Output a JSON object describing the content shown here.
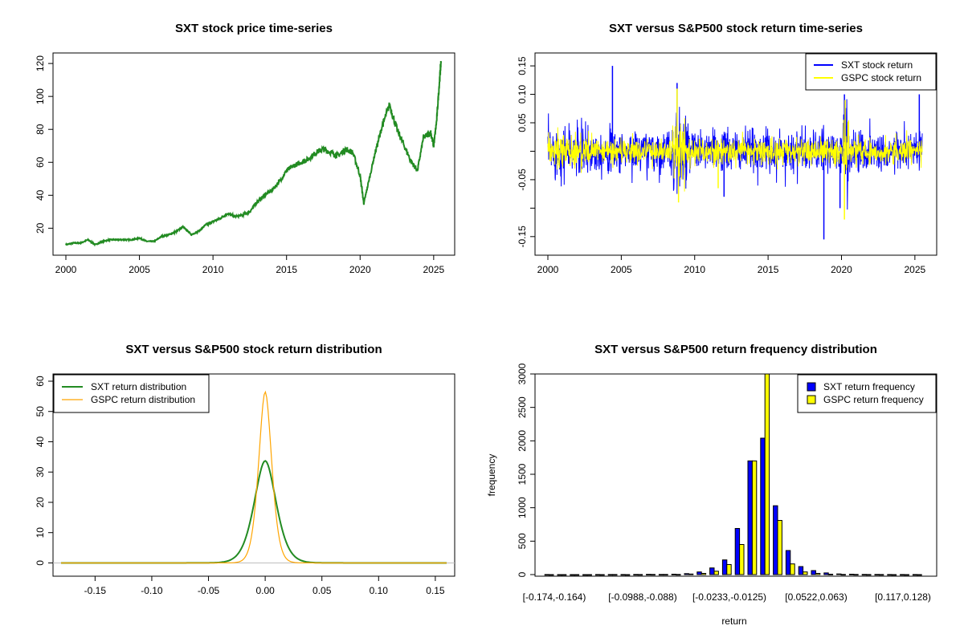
{
  "chart_data": [
    {
      "type": "line",
      "title": "SXT stock price time-series",
      "xlabel": "",
      "ylabel": "",
      "xlim": [
        2000,
        2025.5
      ],
      "ylim": [
        8,
        122
      ],
      "xticks": [
        2000,
        2005,
        2010,
        2015,
        2020,
        2025
      ],
      "yticks": [
        20,
        40,
        60,
        80,
        100,
        120
      ],
      "series": [
        {
          "color": "#228B22",
          "x": [
            2000.0,
            2000.5,
            2001.0,
            2001.5,
            2002.0,
            2002.5,
            2003.0,
            2003.5,
            2004.0,
            2004.5,
            2005.0,
            2005.5,
            2006.0,
            2006.5,
            2007.0,
            2007.5,
            2008.0,
            2008.5,
            2009.0,
            2009.5,
            2010.0,
            2010.5,
            2011.0,
            2011.5,
            2012.0,
            2012.5,
            2013.0,
            2013.5,
            2014.0,
            2014.5,
            2015.0,
            2015.5,
            2016.0,
            2016.5,
            2017.0,
            2017.5,
            2018.0,
            2018.5,
            2019.0,
            2019.5,
            2020.0,
            2020.25,
            2020.5,
            2021.0,
            2021.5,
            2022.0,
            2022.5,
            2023.0,
            2023.5,
            2023.9,
            2024.3,
            2024.8,
            2025.0,
            2025.2,
            2025.4,
            2025.5
          ],
          "y": [
            10,
            11,
            11,
            13,
            10,
            12,
            13,
            13,
            13,
            13,
            14,
            12,
            12,
            15,
            16,
            18,
            21,
            16,
            18,
            22,
            24,
            26,
            29,
            27,
            28,
            30,
            36,
            40,
            43,
            48,
            55,
            58,
            60,
            62,
            66,
            68,
            66,
            64,
            68,
            66,
            52,
            35,
            45,
            65,
            82,
            95,
            80,
            70,
            60,
            55,
            75,
            78,
            70,
            85,
            110,
            121
          ]
        }
      ]
    },
    {
      "type": "line",
      "title": "SXT versus S&P500 stock return time-series",
      "xlabel": "",
      "ylabel": "",
      "xlim": [
        2000,
        2025.5
      ],
      "ylim": [
        -0.17,
        0.16
      ],
      "xticks": [
        2000,
        2005,
        2010,
        2015,
        2020,
        2025
      ],
      "yticks": [
        -0.15,
        -0.1,
        -0.05,
        0.0,
        0.05,
        0.1,
        0.15
      ],
      "ytick_labels": [
        "-0.15",
        "",
        "-0.05",
        "",
        "0.05",
        "0.10",
        "0.15"
      ],
      "legend": {
        "position": "top-right",
        "entries": [
          "SXT stock return",
          "GSPC stock return"
        ]
      },
      "series": [
        {
          "name": "SXT stock return",
          "color": "#0000FF",
          "sd": 0.018,
          "spikes": [
            [
              2004.4,
              0.15
            ],
            [
              2008.8,
              0.12
            ],
            [
              2018.8,
              -0.155
            ],
            [
              2019.9,
              -0.1
            ],
            [
              2020.2,
              0.1
            ],
            [
              2012.0,
              -0.08
            ],
            [
              2025.3,
              0.1
            ]
          ]
        },
        {
          "name": "GSPC stock return",
          "color": "#FFFF00",
          "sd": 0.011,
          "spikes": [
            [
              2008.8,
              0.11
            ],
            [
              2008.9,
              -0.09
            ],
            [
              2020.2,
              -0.12
            ],
            [
              2020.25,
              0.09
            ],
            [
              2011.6,
              -0.065
            ]
          ]
        }
      ]
    },
    {
      "type": "line",
      "title": "SXT versus S&P500 stock return distribution",
      "xlabel": "",
      "ylabel": "",
      "xlim": [
        -0.18,
        0.16
      ],
      "ylim": [
        -2,
        60
      ],
      "xticks": [
        -0.15,
        -0.1,
        -0.05,
        0.0,
        0.05,
        0.1,
        0.15
      ],
      "xtick_labels": [
        "-0.15",
        "-0.10",
        "-0.05",
        "0.00",
        "0.05",
        "0.10",
        "0.15"
      ],
      "yticks": [
        0,
        10,
        20,
        30,
        40,
        50,
        60
      ],
      "legend": {
        "position": "top-left",
        "entries": [
          "SXT return distribution",
          "GSPC return distribution"
        ]
      },
      "series": [
        {
          "name": "SXT return distribution",
          "color": "#228B22",
          "peak": 33.7,
          "scale": 0.0118
        },
        {
          "name": "GSPC return distribution",
          "color": "#FFA500",
          "peak": 56.5,
          "scale": 0.007
        }
      ]
    },
    {
      "type": "bar",
      "title": "SXT versus S&P500 return frequency distribution",
      "xlabel": "return",
      "ylabel": "frequency",
      "ylim": [
        0,
        3000
      ],
      "yticks": [
        0,
        500,
        1000,
        1500,
        2000,
        2500,
        3000
      ],
      "shown_category_labels": [
        "[-0.174,-0.164)",
        "[-0.0988,-0.088)",
        "[-0.0233,-0.0125)",
        "[0.0522,0.063)",
        "[0.117,0.128)"
      ],
      "legend": {
        "position": "top-right",
        "entries": [
          "SXT return frequency",
          "GSPC return frequency"
        ]
      },
      "series": [
        {
          "name": "SXT return frequency",
          "color": "#0000FF",
          "values": [
            1,
            0,
            0,
            0,
            1,
            1,
            1,
            2,
            4,
            3,
            6,
            14,
            40,
            100,
            220,
            690,
            1700,
            2040,
            1030,
            360,
            120,
            60,
            25,
            10,
            6,
            3,
            2,
            1,
            1,
            1
          ]
        },
        {
          "name": "GSPC return frequency",
          "color": "#FFFF00",
          "values": [
            0,
            0,
            0,
            0,
            0,
            1,
            0,
            1,
            2,
            2,
            3,
            8,
            18,
            50,
            150,
            450,
            1700,
            3150,
            810,
            160,
            40,
            18,
            6,
            3,
            2,
            1,
            1,
            0,
            0,
            0
          ]
        }
      ]
    }
  ]
}
